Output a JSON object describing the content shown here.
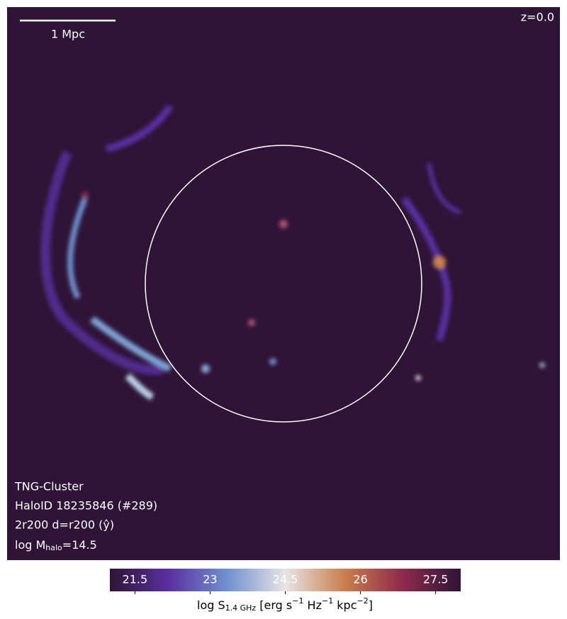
{
  "chart_data": {
    "type": "image",
    "redshift_label": "z=0.0",
    "scalebar_label": "1 Mpc",
    "info_lines": [
      "TNG-Cluster",
      "HaloID 18235846 (#289)",
      "2r200 d=r200 (ŷ)"
    ],
    "mass_label": [
      "log M",
      "halo",
      "=14.5"
    ],
    "colorbar": {
      "clim": [
        21.0,
        28.0
      ],
      "ticks": [
        21.5,
        23.0,
        24.5,
        26.0,
        27.5
      ],
      "colors": [
        "#2f1437",
        "#5b2fa0",
        "#6f8fcf",
        "#e8e3e6",
        "#c9804f",
        "#8e2a4c",
        "#2f1437"
      ],
      "label": [
        "log S",
        "1.4 GHz",
        " [erg s",
        "−1",
        " Hz",
        "−1",
        " kpc",
        "−2",
        "]"
      ]
    }
  }
}
